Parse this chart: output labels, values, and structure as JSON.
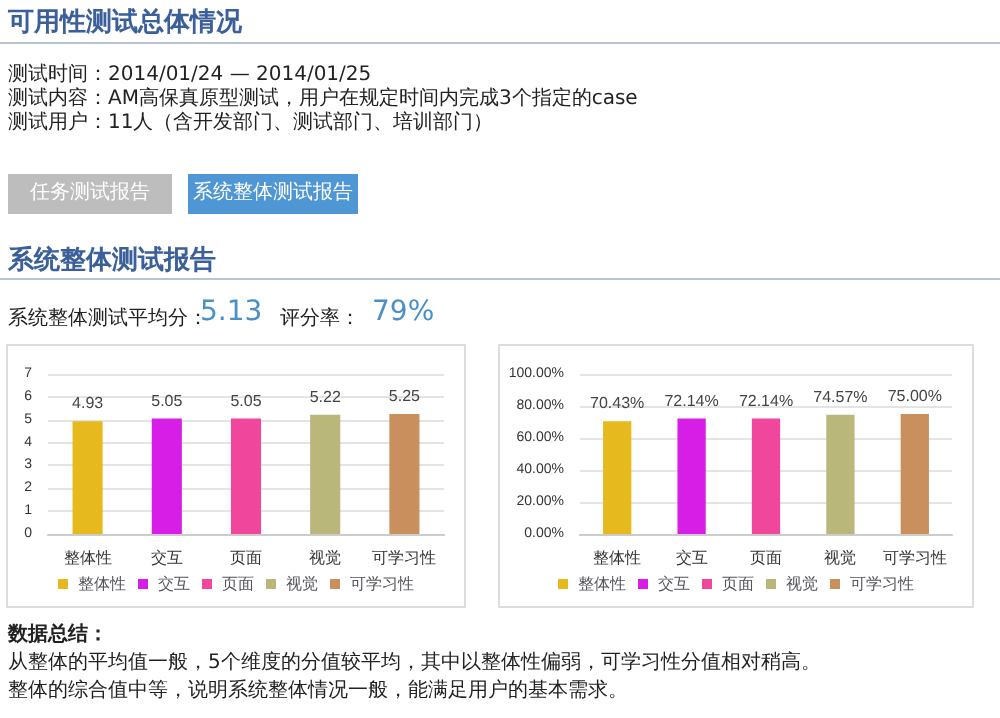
{
  "chart_data": [
    {
      "type": "bar",
      "title": "可用性测试总体情况",
      "annotations": [
        "测试时间：2014/01/24 — 2014/01/25",
        "测试内容：AM高保真原型测试，用户在规定时间内完成3个指定的case",
        "测试用户：11人（含开发部门、测试部门、培训部门）",
        "任务测试报告",
        "系统整体测试报告",
        "系统整体测试报告",
        "系统整体测试平均分：",
        "5.13",
        "评分率：",
        "79%"
      ],
      "categories": [
        "整体性",
        "交互",
        "页面",
        "视觉",
        "可学习性"
      ],
      "series": [
        {
          "name": "整体性",
          "color": "#e6b91e",
          "values": [
            4.93,
            null,
            null,
            null,
            null
          ]
        },
        {
          "name": "交互",
          "color": "#d61ee6",
          "values": [
            null,
            5.05,
            null,
            null,
            null
          ]
        },
        {
          "name": "页面",
          "color": "#f0469b",
          "values": [
            null,
            null,
            5.05,
            null,
            null
          ]
        },
        {
          "name": "视觉",
          "color": "#b9b77a",
          "values": [
            null,
            null,
            null,
            5.22,
            null
          ]
        },
        {
          "name": "可学习性",
          "color": "#c98f5c",
          "values": [
            null,
            null,
            null,
            null,
            5.25
          ]
        }
      ],
      "ylim": [
        0,
        7
      ],
      "yticks": [
        0,
        1,
        2,
        3,
        4,
        5,
        6,
        7
      ],
      "grid": "y",
      "legend": "bottom",
      "data_labels": true
    },
    {
      "type": "bar",
      "annotations": [
        "数据总结：",
        "从整体的平均值一般，5个维度的分值较平均，其中以整体性偏弱，可学习性分值相对稍高。",
        "整体的综合值中等，说明系统整体情况一般，能满足用户的基本需求。"
      ],
      "categories": [
        "整体性",
        "交互",
        "页面",
        "视觉",
        "可学习性"
      ],
      "series": [
        {
          "name": "整体性",
          "color": "#e6b91e",
          "values": [
            70.43,
            null,
            null,
            null,
            null
          ],
          "value_labels": [
            "70.43%",
            null,
            null,
            null,
            null
          ]
        },
        {
          "name": "交互",
          "color": "#d61ee6",
          "values": [
            null,
            72.14,
            null,
            null,
            null
          ],
          "value_labels": [
            null,
            "72.14%",
            null,
            null,
            null
          ]
        },
        {
          "name": "页面",
          "color": "#f0469b",
          "values": [
            null,
            null,
            72.14,
            null,
            null
          ],
          "value_labels": [
            null,
            null,
            "72.14%",
            null,
            null
          ]
        },
        {
          "name": "视觉",
          "color": "#b9b77a",
          "values": [
            null,
            null,
            null,
            74.57,
            null
          ],
          "value_labels": [
            null,
            null,
            null,
            "74.57%",
            null
          ]
        },
        {
          "name": "可学习性",
          "color": "#c98f5c",
          "values": [
            null,
            null,
            null,
            null,
            75.0
          ],
          "value_labels": [
            null,
            null,
            null,
            null,
            "75.00%"
          ]
        }
      ],
      "ylim": [
        0,
        100
      ],
      "yticks": [
        {
          "value": 0,
          "label": "0.00%"
        },
        {
          "value": 20,
          "label": "20.00%"
        },
        {
          "value": 40,
          "label": "40.00%"
        },
        {
          "value": 60,
          "label": "60.00%"
        },
        {
          "value": 80,
          "label": "80.00%"
        },
        {
          "value": 100,
          "label": "100.00%"
        }
      ],
      "grid": "y",
      "legend": "bottom"
    }
  ]
}
